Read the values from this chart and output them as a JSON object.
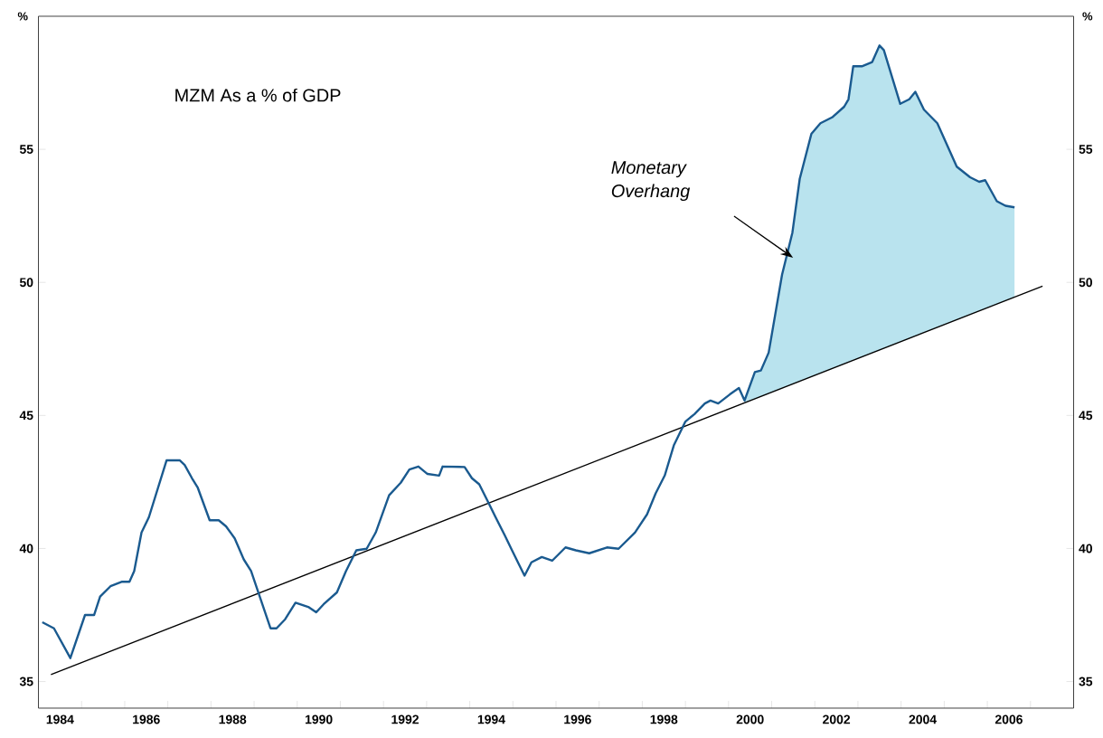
{
  "chart_data": {
    "type": "line",
    "title": "MZM As a % of GDP",
    "ylabel": "%",
    "y2label": "%",
    "annotations": [
      "Monetary Overhang"
    ],
    "xlim": [
      1984,
      2008
    ],
    "ylim": [
      34,
      60
    ],
    "y2lim": [
      34,
      60
    ],
    "xticks": [
      {
        "value": 1984.5,
        "label": "1984"
      },
      {
        "value": 1985,
        "label": null
      },
      {
        "value": 1986,
        "label": null
      },
      {
        "value": 1986.5,
        "label": "1986"
      },
      {
        "value": 1987,
        "label": null
      },
      {
        "value": 1988,
        "label": null
      },
      {
        "value": 1988.5,
        "label": "1988"
      },
      {
        "value": 1989,
        "label": null
      },
      {
        "value": 1990,
        "label": null
      },
      {
        "value": 1990.5,
        "label": "1990"
      },
      {
        "value": 1991,
        "label": null
      },
      {
        "value": 1992,
        "label": null
      },
      {
        "value": 1992.5,
        "label": "1992"
      },
      {
        "value": 1993,
        "label": null
      },
      {
        "value": 1994,
        "label": null
      },
      {
        "value": 1994.5,
        "label": "1994"
      },
      {
        "value": 1995,
        "label": null
      },
      {
        "value": 1996,
        "label": null
      },
      {
        "value": 1996.5,
        "label": "1996"
      },
      {
        "value": 1997,
        "label": null
      },
      {
        "value": 1998,
        "label": null
      },
      {
        "value": 1998.5,
        "label": "1998"
      },
      {
        "value": 1999,
        "label": null
      },
      {
        "value": 2000,
        "label": null
      },
      {
        "value": 2000.5,
        "label": "2000"
      },
      {
        "value": 2001,
        "label": null
      },
      {
        "value": 2002,
        "label": null
      },
      {
        "value": 2002.5,
        "label": "2002"
      },
      {
        "value": 2003,
        "label": null
      },
      {
        "value": 2004,
        "label": null
      },
      {
        "value": 2004.5,
        "label": "2004"
      },
      {
        "value": 2005,
        "label": null
      },
      {
        "value": 2006,
        "label": null
      },
      {
        "value": 2006.5,
        "label": "2006"
      },
      {
        "value": 2007,
        "label": null
      }
    ],
    "yticks": [
      35,
      40,
      45,
      50,
      55
    ],
    "y2ticks": [
      35,
      40,
      45,
      50,
      55
    ],
    "series": [
      {
        "type": "area",
        "color": "#b9e3ee",
        "x": [
          2000.37,
          2000.61,
          2000.75,
          2000.93,
          2001.24,
          2001.48,
          2001.65,
          2001.92,
          2002.13,
          2002.4,
          2002.68,
          2002.78,
          2002.89,
          2003.09,
          2003.33,
          2003.5,
          2003.6,
          2003.98,
          2004.19,
          2004.33,
          2004.53,
          2004.84,
          2005.29,
          2005.6,
          2005.81,
          2005.95,
          2006.22,
          2006.42,
          2006.63
        ],
        "values": [
          45.56,
          46.63,
          46.69,
          47.36,
          50.29,
          51.87,
          53.89,
          55.58,
          55.98,
          56.2,
          56.6,
          56.88,
          58.12,
          58.12,
          58.28,
          58.9,
          58.73,
          56.71,
          56.88,
          57.16,
          56.49,
          55.98,
          54.35,
          53.95,
          53.78,
          53.84,
          53.05,
          52.88,
          52.82
        ]
      },
      {
        "color": "#000000",
        "x": [
          1984.29,
          2007.28
        ],
        "values": [
          35.26,
          49.86
        ]
      },
      {
        "color": "#1a5a8f",
        "x": [
          1984.09,
          1984.36,
          1984.74,
          1985.08,
          1985.29,
          1985.43,
          1985.67,
          1985.94,
          1986.11,
          1986.22,
          1986.39,
          1986.56,
          1986.97,
          1987.28,
          1987.39,
          1987.56,
          1987.69,
          1987.97,
          1988.18,
          1988.35,
          1988.55,
          1988.76,
          1988.93,
          1989.38,
          1989.52,
          1989.72,
          1989.96,
          1990.27,
          1990.44,
          1990.61,
          1990.92,
          1991.13,
          1991.37,
          1991.61,
          1991.82,
          1992.13,
          1992.4,
          1992.6,
          1992.81,
          1993.02,
          1993.29,
          1993.37,
          1993.88,
          1994.05,
          1994.22,
          1994.43,
          1994.6,
          1994.81,
          1994.98,
          1995.15,
          1995.27,
          1995.43,
          1995.67,
          1995.91,
          1996.22,
          1996.46,
          1996.77,
          1997.18,
          1997.45,
          1997.83,
          1998.11,
          1998.31,
          1998.52,
          1998.73,
          1999.0,
          1999.21,
          1999.45,
          1999.58,
          1999.76,
          2000.03,
          2000.24,
          2000.37,
          2000.61,
          2000.75,
          2000.93,
          2001.24,
          2001.48,
          2001.65,
          2001.92,
          2002.13,
          2002.4,
          2002.68,
          2002.78,
          2002.89,
          2003.09,
          2003.33,
          2003.5,
          2003.6,
          2003.98,
          2004.19,
          2004.33,
          2004.53,
          2004.84,
          2005.29,
          2005.6,
          2005.81,
          2005.95,
          2006.22,
          2006.42,
          2006.63
        ],
        "values": [
          37.23,
          37.0,
          35.88,
          37.5,
          37.5,
          38.19,
          38.58,
          38.75,
          38.75,
          39.15,
          40.6,
          41.17,
          43.31,
          43.31,
          43.14,
          42.64,
          42.3,
          41.06,
          41.06,
          40.83,
          40.38,
          39.59,
          39.15,
          37.0,
          37.0,
          37.34,
          37.96,
          37.79,
          37.6,
          37.9,
          38.35,
          39.15,
          39.93,
          39.99,
          40.6,
          42.0,
          42.47,
          42.97,
          43.08,
          42.8,
          42.74,
          43.08,
          43.06,
          42.64,
          42.41,
          41.73,
          41.17,
          40.5,
          39.93,
          39.37,
          38.98,
          39.48,
          39.68,
          39.54,
          40.04,
          39.93,
          39.82,
          40.04,
          39.99,
          40.6,
          41.28,
          42.07,
          42.74,
          43.87,
          44.77,
          45.05,
          45.45,
          45.56,
          45.45,
          45.79,
          46.03,
          45.56,
          46.63,
          46.69,
          47.36,
          50.29,
          51.87,
          53.89,
          55.58,
          55.98,
          56.2,
          56.6,
          56.88,
          58.12,
          58.12,
          58.28,
          58.9,
          58.73,
          56.71,
          56.88,
          57.16,
          56.49,
          55.98,
          54.35,
          53.95,
          53.78,
          53.84,
          53.05,
          52.88,
          52.82
        ]
      }
    ]
  }
}
